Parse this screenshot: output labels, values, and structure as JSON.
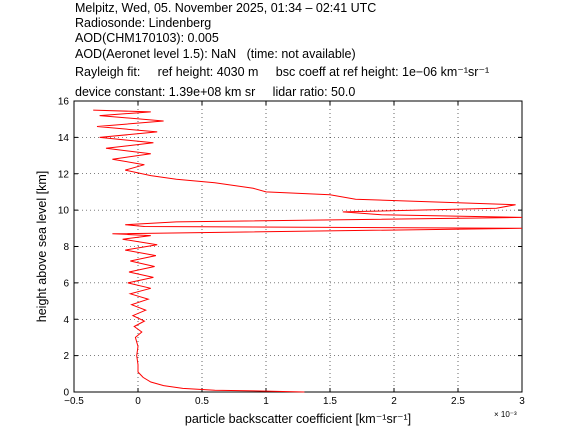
{
  "header": {
    "line1": "Melpitz, Wed, 05. November 2025, 01:34 – 02:41 UTC",
    "line2": "Radiosonde: Lindenberg",
    "line3": "AOD(CHM170103): 0.005",
    "line4": "AOD(Aeronet level 1.5): NaN   (time: not available)",
    "line5": "Rayleigh fit:     ref height: 4030 m     bsc coeff at ref height: 1e−06 km⁻¹sr⁻¹",
    "line6": "device constant: 1.39e+08 km sr     lidar ratio: 50.0"
  },
  "colors": {
    "line": "#ff0000",
    "grid": "#000000",
    "axis": "#000000"
  },
  "chart_data": {
    "type": "line",
    "xlabel": "particle backscatter coefficient [km⁻¹sr⁻¹]",
    "ylabel": "height above sea level [km]",
    "x_scale_note": "× 10⁻³",
    "xlim": [
      -0.5,
      3.0
    ],
    "ylim": [
      0,
      16
    ],
    "x_ticks": [
      "−0.5",
      "0",
      "0.5",
      "1",
      "1.5",
      "2",
      "2.5",
      "3"
    ],
    "y_ticks": [
      "0",
      "2",
      "4",
      "6",
      "8",
      "10",
      "12",
      "14",
      "16"
    ],
    "grid": true,
    "series": [
      {
        "points": [
          [
            1.3,
            0.0
          ],
          [
            1.0,
            0.05
          ],
          [
            0.6,
            0.1
          ],
          [
            0.35,
            0.2
          ],
          [
            0.2,
            0.35
          ],
          [
            0.1,
            0.55
          ],
          [
            0.04,
            0.8
          ],
          [
            0.0,
            1.1
          ],
          [
            0.0,
            1.5
          ],
          [
            -0.01,
            2.0
          ],
          [
            0.0,
            2.5
          ],
          [
            -0.02,
            3.0
          ],
          [
            0.03,
            3.3
          ],
          [
            -0.03,
            3.6
          ],
          [
            0.05,
            3.9
          ],
          [
            -0.04,
            4.2
          ],
          [
            0.06,
            4.5
          ],
          [
            -0.05,
            4.8
          ],
          [
            0.08,
            5.1
          ],
          [
            -0.06,
            5.4
          ],
          [
            0.1,
            5.7
          ],
          [
            -0.08,
            6.0
          ],
          [
            0.12,
            6.3
          ],
          [
            -0.07,
            6.6
          ],
          [
            0.13,
            6.9
          ],
          [
            -0.06,
            7.2
          ],
          [
            0.14,
            7.5
          ],
          [
            -0.1,
            7.8
          ],
          [
            0.15,
            8.1
          ],
          [
            -0.12,
            8.4
          ],
          [
            0.1,
            8.6
          ],
          [
            -0.2,
            8.7
          ],
          [
            3.0,
            9.0
          ],
          [
            0.05,
            9.1
          ],
          [
            -0.1,
            9.2
          ],
          [
            0.3,
            9.35
          ],
          [
            3.0,
            9.6
          ],
          [
            1.9,
            9.75
          ],
          [
            1.6,
            9.9
          ],
          [
            2.8,
            10.1
          ],
          [
            2.95,
            10.3
          ],
          [
            1.7,
            10.6
          ],
          [
            1.5,
            10.85
          ],
          [
            1.0,
            11.0
          ],
          [
            0.9,
            11.2
          ],
          [
            0.6,
            11.5
          ],
          [
            0.3,
            11.7
          ],
          [
            0.1,
            11.9
          ],
          [
            -0.1,
            12.2
          ],
          [
            0.05,
            12.5
          ],
          [
            -0.2,
            12.8
          ],
          [
            0.1,
            13.1
          ],
          [
            -0.25,
            13.4
          ],
          [
            0.12,
            13.7
          ],
          [
            -0.3,
            14.0
          ],
          [
            0.15,
            14.3
          ],
          [
            -0.32,
            14.6
          ],
          [
            0.2,
            14.9
          ],
          [
            -0.3,
            15.2
          ],
          [
            0.1,
            15.4
          ],
          [
            -0.35,
            15.5
          ]
        ]
      }
    ]
  }
}
